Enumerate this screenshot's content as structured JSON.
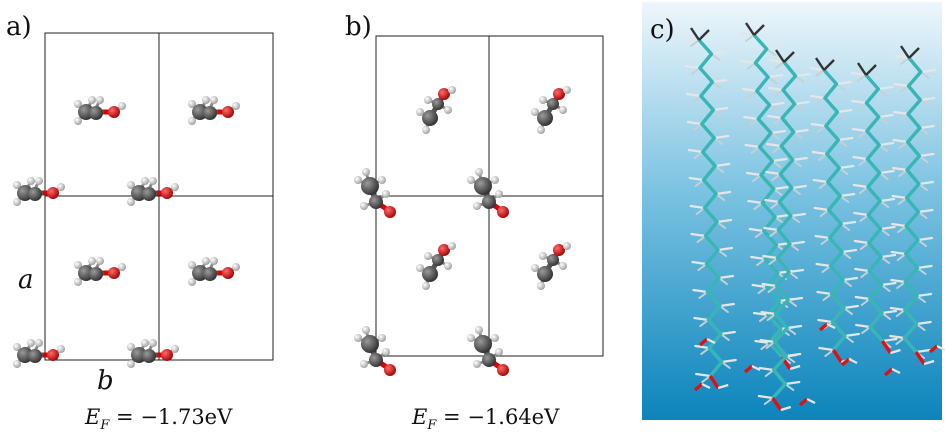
{
  "panels": {
    "a": {
      "label": "a)",
      "axis_a": "a",
      "axis_b": "b",
      "energy": "E_F = −1.73eV",
      "energy_sym": "E",
      "energy_sub": "F",
      "energy_rest": " = −1.73eV"
    },
    "b": {
      "label": "b)",
      "energy": "E_F = −1.64eV",
      "energy_sym": "E",
      "energy_sub": "F",
      "energy_rest": " = −1.64eV"
    },
    "c": {
      "label": "c)"
    }
  },
  "colors": {
    "carbon": "#4a4a4a",
    "hydrogen": "#e6e6e6",
    "oxygen": "#e01010",
    "chain_bond": "#38b6b6",
    "gradient_top": "#e9f3f9",
    "gradient_bottom": "#0c86bd"
  }
}
